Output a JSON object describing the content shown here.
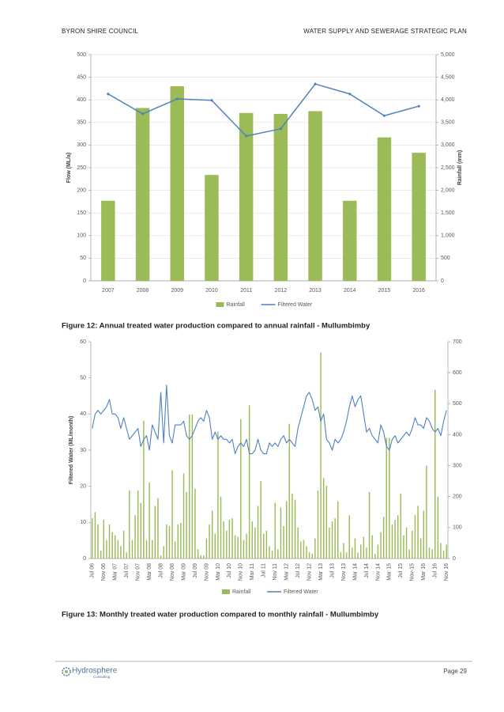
{
  "header": {
    "left": "BYRON SHIRE COUNCIL",
    "right": "WATER SUPPLY AND SEWERAGE STRATEGIC PLAN"
  },
  "chart_data": [
    {
      "type": "bar",
      "caption": "Figure 12: Annual treated water production compared to annual rainfall - Mullumbimby",
      "ylabel": "Flow (ML/a)",
      "y2label": "Rainfall (mm)",
      "categories": [
        "2007",
        "2008",
        "2009",
        "2010",
        "2011",
        "2012",
        "2013",
        "2014",
        "2015",
        "2016"
      ],
      "series": [
        {
          "name": "Rainfall",
          "type": "bar",
          "axis": "y2",
          "color": "#9bbb59",
          "values": [
            1770,
            3820,
            4300,
            2340,
            3710,
            3690,
            3750,
            1770,
            3170,
            2830
          ]
        },
        {
          "name": "Filtered Water",
          "type": "line",
          "axis": "y",
          "color": "#4f81bd",
          "values": [
            413,
            369,
            402,
            399,
            320,
            336,
            435,
            413,
            365,
            386
          ]
        }
      ],
      "ylim": [
        0,
        500
      ],
      "yticks": [
        0,
        50,
        100,
        150,
        200,
        250,
        300,
        350,
        400,
        450,
        500
      ],
      "y2lim": [
        0,
        5000
      ],
      "y2ticks": [
        0,
        500,
        {
          "value": 1000,
          "label": "1,000"
        },
        {
          "value": 1500,
          "label": "1,500"
        },
        {
          "value": 2000,
          "label": "2,000"
        },
        {
          "value": 2500,
          "label": "2,500"
        },
        {
          "value": 3000,
          "label": "3,000"
        },
        {
          "value": 3500,
          "label": "3,500"
        },
        {
          "value": 4000,
          "label": "4,000"
        },
        {
          "value": 4500,
          "label": "4,500"
        },
        {
          "value": 5000,
          "label": "5,000"
        }
      ],
      "grid": true,
      "legend": "bottom"
    },
    {
      "type": "bar",
      "caption": "Figure 13: Monthly treated water production compared to monthly rainfall - Mullumbimby",
      "ylabel": "Filtered Water (ML/month)",
      "categories": [
        "Jul 06",
        null,
        null,
        null,
        "Nov 06",
        null,
        null,
        null,
        "Mar 07",
        null,
        null,
        null,
        "Jul 07",
        null,
        null,
        null,
        "Nov 07",
        null,
        null,
        null,
        "Mar 08",
        null,
        null,
        null,
        "Jul 08",
        null,
        null,
        null,
        "Nov 08",
        null,
        null,
        null,
        "Mar 09",
        null,
        null,
        null,
        "Jul 09",
        null,
        null,
        null,
        "Nov 09",
        null,
        null,
        null,
        "Mar 10",
        null,
        null,
        null,
        "Jul 10",
        null,
        null,
        null,
        "Nov 10",
        null,
        null,
        null,
        "Mar 11",
        null,
        null,
        null,
        "Jul 11",
        null,
        null,
        null,
        "Nov 11",
        null,
        null,
        null,
        "Mar 12",
        null,
        null,
        null,
        "Jul 12",
        null,
        null,
        null,
        "Nov 12",
        null,
        null,
        null,
        "Mar 13",
        null,
        null,
        null,
        "Jul 13",
        null,
        null,
        null,
        "Nov 13",
        null,
        null,
        null,
        "Mar 14",
        null,
        null,
        null,
        "Jul 14",
        null,
        null,
        null,
        "Nov 14",
        null,
        null,
        null,
        "Mar 15",
        null,
        null,
        null,
        "Jul 15",
        null,
        null,
        null,
        "Nov-15",
        null,
        null,
        null,
        "Mar 16",
        null,
        null,
        null,
        "Jul 16",
        null,
        null,
        null,
        "Nov 16"
      ],
      "series": [
        {
          "name": "Rainfall",
          "type": "bar",
          "axis": "y2",
          "color": "#9bbb59",
          "values": [
            130,
            150,
            110,
            25,
            125,
            60,
            110,
            85,
            75,
            60,
            40,
            90,
            20,
            220,
            60,
            140,
            220,
            180,
            445,
            60,
            245,
            60,
            170,
            195,
            10,
            40,
            110,
            105,
            285,
            55,
            110,
            115,
            275,
            215,
            465,
            465,
            225,
            30,
            10,
            10,
            65,
            110,
            155,
            80,
            410,
            200,
            120,
            90,
            125,
            130,
            75,
            70,
            450,
            60,
            80,
            495,
            120,
            100,
            170,
            250,
            80,
            90,
            40,
            25,
            180,
            30,
            165,
            105,
            185,
            435,
            210,
            190,
            100,
            55,
            60,
            40,
            20,
            15,
            65,
            220,
            665,
            260,
            235,
            100,
            120,
            130,
            185,
            20,
            50,
            20,
            140,
            35,
            65,
            20,
            45,
            70,
            35,
            215,
            75,
            15,
            45,
            85,
            135,
            390,
            390,
            110,
            125,
            140,
            210,
            75,
            100,
            30,
            90,
            140,
            170,
            65,
            155,
            300,
            35,
            30,
            545,
            200,
            50,
            25,
            45
          ]
        },
        {
          "name": "Filtered Water",
          "type": "line",
          "axis": "y",
          "color": "#4f81bd",
          "values": [
            36,
            40,
            41,
            40,
            41,
            42,
            44,
            40,
            40,
            39,
            36,
            39,
            36,
            33,
            34,
            35,
            36,
            31,
            33,
            34,
            30,
            37,
            35,
            33,
            46,
            32,
            48,
            34,
            32,
            37,
            37,
            37,
            38,
            34,
            33,
            34,
            36,
            38,
            39,
            38,
            41,
            39,
            33,
            35,
            33,
            34,
            33,
            33,
            32,
            33,
            29,
            31,
            32,
            31,
            33,
            29,
            29,
            30,
            33,
            30,
            29,
            29,
            32,
            31,
            32,
            31,
            33,
            34,
            32,
            33,
            32,
            31,
            36,
            39,
            42,
            45,
            46,
            44,
            41,
            42,
            38,
            40,
            33,
            32,
            30,
            33,
            32,
            33,
            35,
            38,
            42,
            45,
            42,
            44,
            45,
            40,
            35,
            36,
            34,
            33,
            32,
            37,
            35,
            31,
            30,
            33,
            34,
            32,
            33,
            34,
            35,
            34,
            36,
            39,
            37,
            37,
            36,
            39,
            38,
            36,
            35,
            36,
            34,
            38,
            41
          ]
        }
      ],
      "ylim": [
        0,
        60
      ],
      "yticks": [
        0,
        10,
        20,
        30,
        40,
        50,
        60
      ],
      "y2lim": [
        0,
        700
      ],
      "y2ticks": [
        0,
        100,
        200,
        300,
        400,
        500,
        600,
        700
      ],
      "grid": false,
      "legend": "bottom"
    }
  ],
  "footer": {
    "logo": "Hydrosphere",
    "logo_sub": "Consulting",
    "page": "Page 29"
  }
}
